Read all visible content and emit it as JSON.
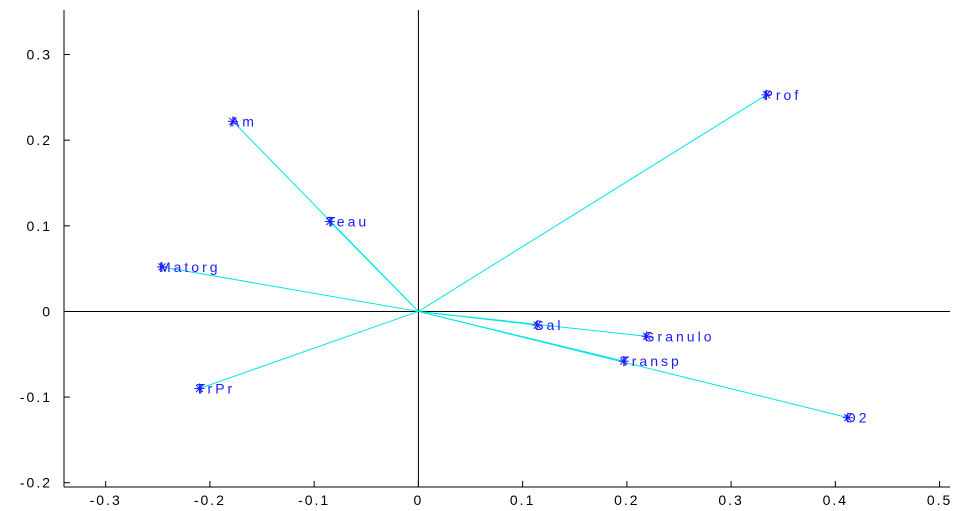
{
  "chart_data": {
    "type": "scatter",
    "subtype": "biplot-vectors",
    "title": "",
    "xlabel": "",
    "ylabel": "",
    "xlim": [
      -0.34,
      0.51
    ],
    "ylim": [
      -0.205,
      0.352
    ],
    "xticks": [
      -0.3,
      -0.2,
      -0.1,
      0,
      0.1,
      0.2,
      0.3,
      0.4,
      0.5
    ],
    "xtick_labels": [
      "-0.3",
      "-0.2",
      "-0.1",
      "0",
      "0.1",
      "0.2",
      "0.3",
      "0.4",
      "0.5"
    ],
    "yticks": [
      -0.2,
      -0.1,
      0,
      0.1,
      0.2,
      0.3
    ],
    "ytick_labels": [
      "-0.2",
      "-0.1",
      "0",
      "0.1",
      "0.2",
      "0.3"
    ],
    "origin_axes": true,
    "grid": false,
    "points": [
      {
        "label": "Prof",
        "x": 0.334,
        "y": 0.253
      },
      {
        "label": "Am",
        "x": -0.178,
        "y": 0.222
      },
      {
        "label": "Teau",
        "x": -0.085,
        "y": 0.105
      },
      {
        "label": "Matorg",
        "x": -0.246,
        "y": 0.052
      },
      {
        "label": "Sal",
        "x": 0.114,
        "y": -0.016
      },
      {
        "label": "Granulo",
        "x": 0.219,
        "y": -0.029
      },
      {
        "label": "Transp",
        "x": 0.197,
        "y": -0.058
      },
      {
        "label": "O2",
        "x": 0.412,
        "y": -0.124
      },
      {
        "label": "TrPr",
        "x": -0.21,
        "y": -0.09
      }
    ],
    "colors": {
      "vector": "#00e6e6",
      "marker": "#1a1aff",
      "label": "#1a1aff",
      "axis": "#000000"
    }
  }
}
